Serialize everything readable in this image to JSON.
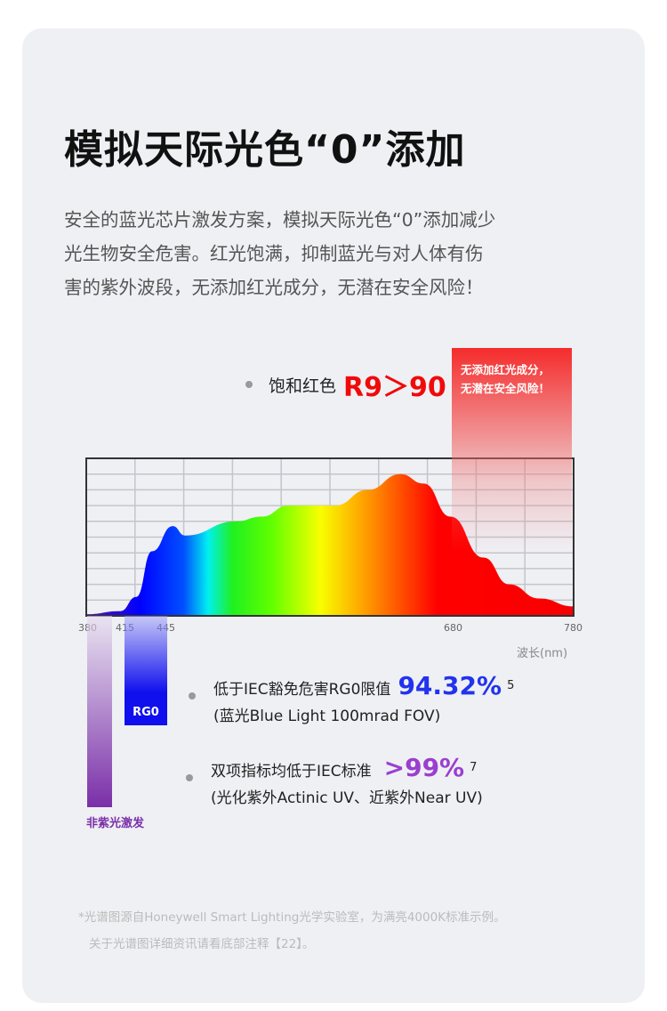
{
  "title": "模拟天际光色“0”添加",
  "description": [
    "安全的蓝光芯片激发方案，模拟天际光色“0”添加减少",
    "光生物安全危害。红光饱满，抑制蓝光与对人体有伤",
    "害的紫外波段，无添加红光成分，无潜在安全风险！"
  ],
  "r9": {
    "label": "饱和红色",
    "value": "R9＞90"
  },
  "red_note": [
    "无添加红光成分，",
    "无潜在安全风险！"
  ],
  "chart_data": {
    "type": "area",
    "xlabel": "波长(nm)",
    "x_ticks": [
      "380",
      "415",
      "445",
      "680",
      "780"
    ],
    "xlim": [
      380,
      780
    ],
    "ylim": [
      0,
      1
    ],
    "grid": true,
    "x": [
      380,
      408,
      421,
      434,
      451,
      461,
      503,
      524,
      546,
      584,
      611,
      638,
      657,
      679,
      706,
      727,
      752,
      780
    ],
    "y": [
      0.01,
      0.03,
      0.12,
      0.41,
      0.57,
      0.51,
      0.6,
      0.63,
      0.7,
      0.7,
      0.8,
      0.9,
      0.84,
      0.63,
      0.37,
      0.2,
      0.11,
      0.06
    ]
  },
  "rg0_label": "RG0",
  "uv_label": "非紫光激发",
  "items": [
    {
      "line1": "低于IEC豁免危害RG0限值",
      "value": "94.32%",
      "sup": "5",
      "line2": "(蓝光Blue Light 100mrad FOV)",
      "color": "#2233ee"
    },
    {
      "line1": "双项指标均低于IEC标准",
      "value": ">99%",
      "sup": "7",
      "line2": "(光化紫外Actinic UV、近紫外Near UV)",
      "color": "#9a3fd0"
    }
  ],
  "footnote": [
    "*光谱图源自Honeywell Smart Lighting光学实验室，为满亮4000K标准示例。",
    "关于光谱图详细资讯请看底部注释【22】。"
  ]
}
